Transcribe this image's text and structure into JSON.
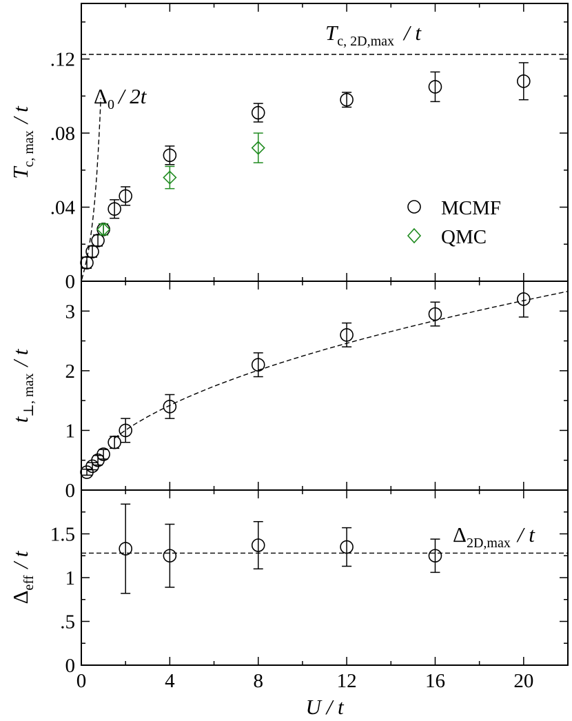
{
  "chart_data": [
    {
      "type": "scatter",
      "panel": "top",
      "xlim": [
        0,
        22
      ],
      "ylim": [
        0,
        0.15
      ],
      "x_ticks": [
        0,
        4,
        8,
        12,
        16,
        20
      ],
      "y_ticks": [
        0,
        0.04,
        0.08,
        0.12
      ],
      "y_tick_labels": [
        "0",
        ".04",
        ".08",
        ".12"
      ],
      "ylabel": {
        "main": "T",
        "sub": "c, max",
        "tail": "/ t"
      },
      "annotations": {
        "hline_value": 0.1225,
        "hline_label": {
          "main": "T",
          "sub": "c, 2D,max",
          "tail": "/ t"
        },
        "curve_label": {
          "main": "Δ",
          "sub": "0",
          "tail": "/ 2t"
        }
      },
      "legend_position": "right",
      "series": [
        {
          "name": "MCMF",
          "color": "#000000",
          "marker": "circle",
          "points": [
            {
              "x": 0.25,
              "y": 0.01,
              "err": 0.003
            },
            {
              "x": 0.5,
              "y": 0.016,
              "err": 0.003
            },
            {
              "x": 0.75,
              "y": 0.022,
              "err": 0.003
            },
            {
              "x": 1.0,
              "y": 0.028,
              "err": 0.003
            },
            {
              "x": 1.5,
              "y": 0.039,
              "err": 0.005
            },
            {
              "x": 2.0,
              "y": 0.046,
              "err": 0.005
            },
            {
              "x": 4.0,
              "y": 0.068,
              "err": 0.005
            },
            {
              "x": 8.0,
              "y": 0.091,
              "err": 0.005
            },
            {
              "x": 12.0,
              "y": 0.098,
              "err": 0.004
            },
            {
              "x": 16.0,
              "y": 0.105,
              "err": 0.008
            },
            {
              "x": 20.0,
              "y": 0.108,
              "err": 0.01
            }
          ]
        },
        {
          "name": "QMC",
          "color": "#1e8a1e",
          "marker": "diamond",
          "points": [
            {
              "x": 1.0,
              "y": 0.028,
              "err": 0.003
            },
            {
              "x": 4.0,
              "y": 0.056,
              "err": 0.006
            },
            {
              "x": 8.0,
              "y": 0.072,
              "err": 0.008
            }
          ]
        }
      ]
    },
    {
      "type": "scatter",
      "panel": "middle",
      "xlim": [
        0,
        22
      ],
      "ylim": [
        0,
        3.5
      ],
      "x_ticks": [
        0,
        4,
        8,
        12,
        16,
        20
      ],
      "y_ticks": [
        0,
        1,
        2,
        3
      ],
      "y_tick_labels": [
        "0",
        "1",
        "2",
        "3"
      ],
      "ylabel": {
        "main": "t",
        "sub": "⊥, max",
        "tail": "/ t"
      },
      "fit_curve": "dashed",
      "series": [
        {
          "color": "#000000",
          "marker": "circle",
          "points": [
            {
              "x": 0.25,
              "y": 0.3,
              "err": 0.05
            },
            {
              "x": 0.5,
              "y": 0.4,
              "err": 0.06
            },
            {
              "x": 0.75,
              "y": 0.5,
              "err": 0.08
            },
            {
              "x": 1.0,
              "y": 0.6,
              "err": 0.08
            },
            {
              "x": 1.5,
              "y": 0.8,
              "err": 0.1
            },
            {
              "x": 2.0,
              "y": 1.0,
              "err": 0.2
            },
            {
              "x": 4.0,
              "y": 1.4,
              "err": 0.2
            },
            {
              "x": 8.0,
              "y": 2.1,
              "err": 0.2
            },
            {
              "x": 12.0,
              "y": 2.6,
              "err": 0.2
            },
            {
              "x": 16.0,
              "y": 2.95,
              "err": 0.2
            },
            {
              "x": 20.0,
              "y": 3.2,
              "err": 0.3
            }
          ]
        }
      ]
    },
    {
      "type": "scatter",
      "panel": "bottom",
      "xlim": [
        0,
        22
      ],
      "ylim": [
        0,
        2.0
      ],
      "x_ticks": [
        0,
        4,
        8,
        12,
        16,
        20
      ],
      "x_tick_labels": [
        "0",
        "4",
        "8",
        "12",
        "16",
        "20"
      ],
      "y_ticks": [
        0,
        0.5,
        1,
        1.5
      ],
      "y_tick_labels": [
        "0",
        ".5",
        "1",
        "1.5"
      ],
      "ylabel": {
        "main": "Δ",
        "sub": "eff",
        "tail": "/ t"
      },
      "xlabel": "U / t",
      "annotations": {
        "hline_value": 1.28,
        "hline_label": {
          "main": "Δ",
          "sub": "2D,max",
          "tail": "/ t"
        }
      },
      "series": [
        {
          "color": "#000000",
          "marker": "circle",
          "points": [
            {
              "x": 2.0,
              "y": 1.33,
              "err": 0.51
            },
            {
              "x": 4.0,
              "y": 1.25,
              "err": 0.36
            },
            {
              "x": 8.0,
              "y": 1.37,
              "err": 0.27
            },
            {
              "x": 12.0,
              "y": 1.35,
              "err": 0.22
            },
            {
              "x": 16.0,
              "y": 1.25,
              "err": 0.19
            }
          ]
        }
      ]
    }
  ]
}
